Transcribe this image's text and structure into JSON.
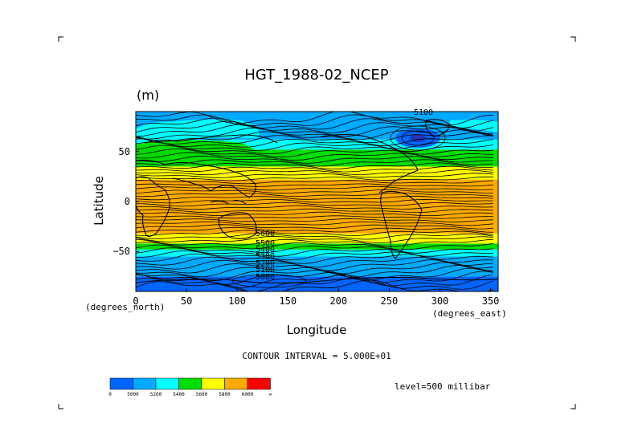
{
  "chart_data": {
    "type": "heatmap",
    "title": "HGT_1988-02_NCEP",
    "units": "(m)",
    "xlabel": "Longitude",
    "ylabel": "Latitude",
    "x_unit_label": "(degrees_east)",
    "y_unit_label": "(degrees_north)",
    "xlim": [
      0,
      357.5
    ],
    "ylim": [
      -90,
      90
    ],
    "x_ticks": [
      0,
      50,
      100,
      150,
      200,
      250,
      300,
      350
    ],
    "y_ticks": [
      -50,
      0,
      50
    ],
    "contour_interval_text": "CONTOUR INTERVAL = 5.000E+01",
    "level_text": "level=500 millibar",
    "contour_labels": [
      "5100",
      "5600",
      "5500",
      "5400",
      "5300",
      "5200",
      "5100",
      "5000"
    ],
    "color_levels": [
      {
        "label": "0",
        "upper": 5000,
        "color": "#0066ff"
      },
      {
        "label": "5000",
        "upper": 5200,
        "color": "#00aaff"
      },
      {
        "label": "5200",
        "upper": 5400,
        "color": "#00ffff"
      },
      {
        "label": "5400",
        "upper": 5600,
        "color": "#00dd00"
      },
      {
        "label": "5600",
        "upper": 5800,
        "color": "#ffff00"
      },
      {
        "label": "5800",
        "upper": 6000,
        "color": "#ffaa00"
      },
      {
        "label": "6000",
        "upper": 99999,
        "color": "#ff0000"
      },
      {
        "label": "∞",
        "upper": null,
        "color": null
      }
    ],
    "colorbar_tick_labels": [
      "0",
      "5000",
      "5200",
      "5400",
      "5600",
      "5800",
      "6000",
      "∞"
    ],
    "zonal_bands": [
      {
        "lat": [
          -90,
          -75
        ],
        "range_m": "<5000",
        "color": "#0066ff"
      },
      {
        "lat": [
          -75,
          -55
        ],
        "range_m": "5000-5200",
        "color": "#00aaff"
      },
      {
        "lat": [
          -55,
          -48
        ],
        "range_m": "5200-5400",
        "color": "#00ffff"
      },
      {
        "lat": [
          -48,
          -42
        ],
        "range_m": "5400-5600",
        "color": "#00dd00"
      },
      {
        "lat": [
          -42,
          -32
        ],
        "range_m": "5600-5800",
        "color": "#ffff00"
      },
      {
        "lat": [
          -32,
          22
        ],
        "range_m": "5800-6000",
        "color": "#ffaa00"
      },
      {
        "lat": [
          22,
          35
        ],
        "range_m": "5600-5800",
        "color": "#ffff00"
      },
      {
        "lat": [
          35,
          52
        ],
        "range_m": "5400-5600",
        "color": "#00dd00"
      },
      {
        "lat": [
          52,
          62
        ],
        "range_m": "5200-5400",
        "color": "#00ffff"
      },
      {
        "lat": [
          62,
          90
        ],
        "range_m": "5000-5200",
        "color": "#00aaff"
      }
    ]
  }
}
